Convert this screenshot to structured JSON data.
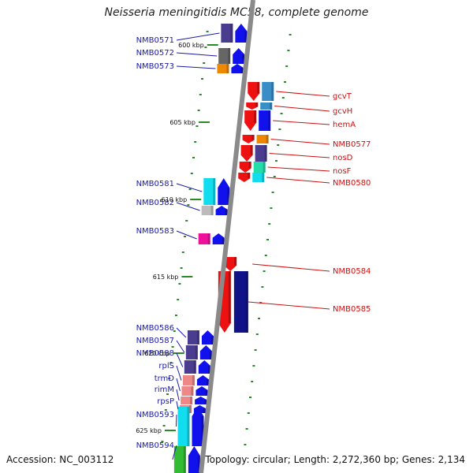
{
  "title": "Neisseria meningitidis MC58, complete genome",
  "footer": {
    "accession": "Accession: NC_003112",
    "summary": "Topology: circular; Length: 2,272,360 bp; Genes: 2,134"
  },
  "colors": {
    "backbone": "#8a8a8a",
    "tick": "#2a8a2a",
    "left_label": "#1a1aa8",
    "right_label": "#cc1111"
  },
  "kbp_ticks": [
    "600 kbp",
    "605 kbp",
    "610 kbp",
    "615 kbp",
    "620 kbp",
    "625 kbp"
  ],
  "left_genes": [
    {
      "name": "NMB0571",
      "color": "#4a3d8f",
      "arrow": "#1111ee"
    },
    {
      "name": "NMB0572",
      "color": "#666666",
      "arrow": "#1111ee"
    },
    {
      "name": "NMB0573",
      "color": "#ee8800",
      "arrow": "#1111ee"
    },
    {
      "name": "NMB0581",
      "color": "#11ddee",
      "arrow": "#1111ee"
    },
    {
      "name": "NMB0582",
      "color": "#bbbbbb",
      "arrow": "#1111ee"
    },
    {
      "name": "NMB0583",
      "color": "#ee1199",
      "arrow": "#1111ee"
    },
    {
      "name": "NMB0586",
      "color": "#4a3d8f",
      "arrow": "#1111ee"
    },
    {
      "name": "NMB0587",
      "color": "#4a3d8f",
      "arrow": "#1111ee"
    },
    {
      "name": "NMB0588",
      "color": "#4a3d8f",
      "arrow": "#1111ee"
    },
    {
      "name": "rplS",
      "color": "#ee8888",
      "arrow": "#1111ee"
    },
    {
      "name": "trmD",
      "color": "#ee8888",
      "arrow": "#1111ee"
    },
    {
      "name": "rimM",
      "color": "#ee8888",
      "arrow": "#1111ee"
    },
    {
      "name": "rpsP",
      "color": "#ee8888",
      "arrow": "#1111ee"
    },
    {
      "name": "NMB0593",
      "color": "#11ddee",
      "arrow": "#1111ee"
    },
    {
      "name": "NMB0594",
      "color": "#33bb33",
      "arrow": "#1111ee"
    }
  ],
  "right_genes": [
    {
      "name": "gcvT",
      "color": "#3a8ec8",
      "arrow": "#ee1111"
    },
    {
      "name": "gcvH",
      "color": "#3a8ec8",
      "arrow": "#ee1111"
    },
    {
      "name": "hemA",
      "color": "#1111ee",
      "arrow": "#ee1111"
    },
    {
      "name": "NMB0577",
      "color": "#ee8800",
      "arrow": "#ee1111"
    },
    {
      "name": "nosD",
      "color": "#4a3d8f",
      "arrow": "#ee1111"
    },
    {
      "name": "nosF",
      "color": "#22ddaa",
      "arrow": "#ee1111"
    },
    {
      "name": "NMB0580",
      "color": "#11ddee",
      "arrow": "#ee1111"
    },
    {
      "name": "NMB0584",
      "color": "#ee1111",
      "arrow": "#ee1111"
    },
    {
      "name": "NMB0585",
      "color": "#111188",
      "arrow": "#ee1111"
    }
  ]
}
